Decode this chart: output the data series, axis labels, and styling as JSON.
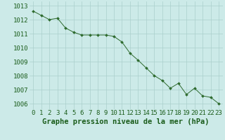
{
  "x": [
    0,
    1,
    2,
    3,
    4,
    5,
    6,
    7,
    8,
    9,
    10,
    11,
    12,
    13,
    14,
    15,
    16,
    17,
    18,
    19,
    20,
    21,
    22,
    23
  ],
  "y": [
    1012.6,
    1012.3,
    1012.0,
    1012.1,
    1011.4,
    1011.1,
    1010.9,
    1010.9,
    1010.9,
    1010.9,
    1010.8,
    1010.4,
    1009.6,
    1009.1,
    1008.55,
    1008.0,
    1007.65,
    1007.1,
    1007.45,
    1006.65,
    1007.1,
    1006.55,
    1006.45,
    1006.0
  ],
  "line_color": "#2d6a2d",
  "marker": "D",
  "marker_size": 2.0,
  "bg_color": "#cceae8",
  "grid_color": "#aacfcc",
  "xlabel": "Graphe pression niveau de la mer (hPa)",
  "xlabel_fontsize": 7.5,
  "xlabel_color": "#1a5c1a",
  "ylabel_ticks": [
    1006,
    1007,
    1008,
    1009,
    1010,
    1011,
    1012,
    1013
  ],
  "xlim": [
    -0.5,
    23.5
  ],
  "ylim": [
    1005.6,
    1013.3
  ],
  "tick_fontsize": 6.5,
  "tick_color": "#1a5c1a"
}
